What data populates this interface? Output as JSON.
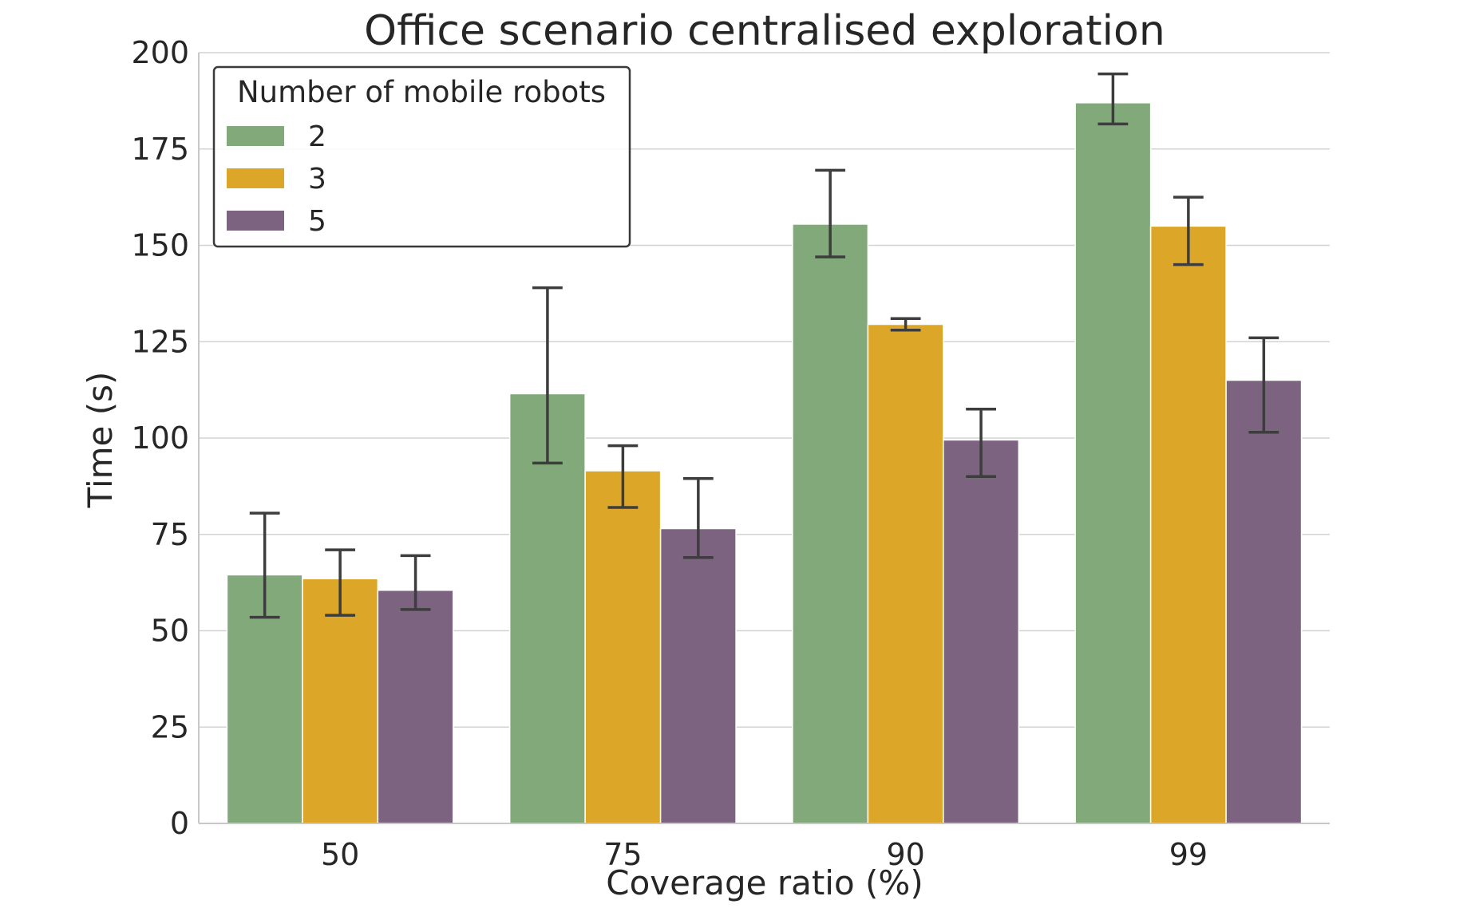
{
  "chart_data": {
    "type": "bar",
    "title": "Office scenario centralised exploration",
    "xlabel": "Coverage ratio (%)",
    "ylabel": "Time (s)",
    "categories": [
      "50",
      "75",
      "90",
      "99"
    ],
    "ylim": [
      0,
      200
    ],
    "yticks": [
      0,
      25,
      50,
      75,
      100,
      125,
      150,
      175,
      200
    ],
    "grid": true,
    "legend": {
      "title": "Number of mobile robots",
      "placement": "top-left"
    },
    "series": [
      {
        "name": "2",
        "color": "#81a979",
        "values": [
          64.5,
          111.5,
          155.5,
          187.0
        ],
        "err_low": [
          53.5,
          93.5,
          147.0,
          181.5
        ],
        "err_high": [
          80.5,
          139.0,
          169.5,
          194.5
        ]
      },
      {
        "name": "3",
        "color": "#dca629",
        "values": [
          63.5,
          91.5,
          129.5,
          155.0
        ],
        "err_low": [
          54.0,
          82.0,
          128.0,
          145.0
        ],
        "err_high": [
          71.0,
          98.0,
          131.0,
          162.5
        ]
      },
      {
        "name": "5",
        "color": "#7c6380",
        "values": [
          60.5,
          76.5,
          99.5,
          115.0
        ],
        "err_low": [
          55.5,
          69.0,
          90.0,
          101.5
        ],
        "err_high": [
          69.5,
          89.5,
          107.5,
          126.0
        ]
      }
    ]
  }
}
